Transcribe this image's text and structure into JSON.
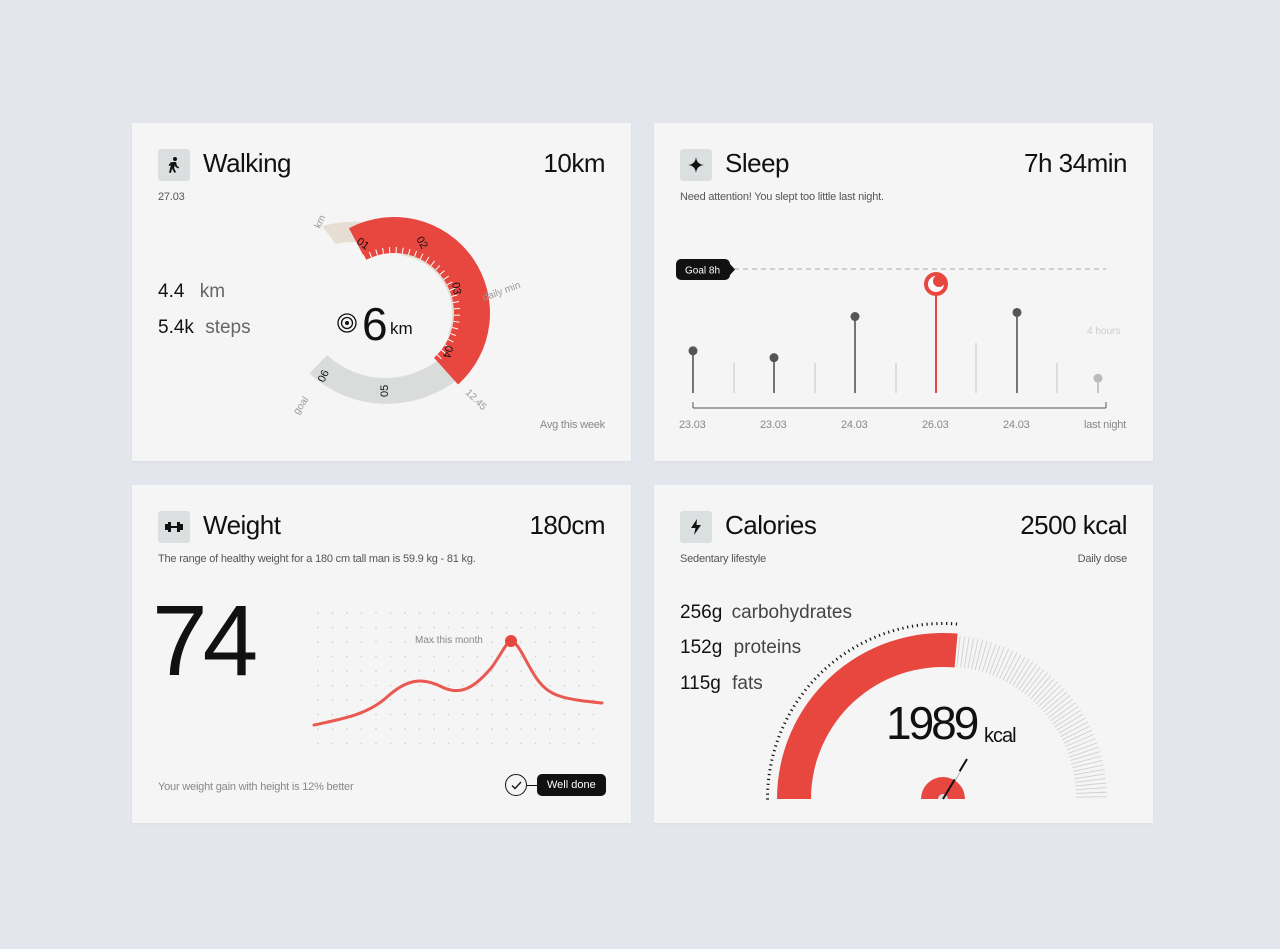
{
  "walking": {
    "title": "Walking",
    "value": "10km",
    "date": "27.03",
    "stats": [
      {
        "value": "4.4",
        "unit": "km"
      },
      {
        "value": "5.4k",
        "unit": "steps"
      }
    ],
    "center_value": "6",
    "center_unit": "km",
    "ticks": [
      "01",
      "02",
      "03",
      "04",
      "05",
      "06"
    ],
    "label_km": "km",
    "label_daily_min": "daily min",
    "label_goal": "goal",
    "label_time": "12.45",
    "footer": "Avg this week",
    "progress_fraction": 0.62
  },
  "sleep": {
    "title": "Sleep",
    "value": "7h 34min",
    "subtitle": "Need attention! You slept too little last night.",
    "goal_label": "Goal 8h",
    "hint": "4 hours",
    "dates": [
      "23.03",
      "23.03",
      "24.03",
      "26.03",
      "24.03",
      "last night"
    ],
    "chart_data": {
      "type": "line",
      "x": [
        "23.03",
        "23.03",
        "24.03",
        "26.03",
        "24.03",
        "last night"
      ],
      "values": [
        6.0,
        5.5,
        8.5,
        10.0,
        8.8,
        4.0
      ],
      "goal": 8
    },
    "highlight_color": "#e8473f"
  },
  "weight": {
    "title": "Weight",
    "value": "180cm",
    "subtitle": "The range of healthy weight for a 180 cm tall man is 59.9 kg - 81 kg.",
    "big_value": "74",
    "chart_label": "Max this month",
    "footer": "Your weight gain with height is 12% better",
    "badge": "Well done"
  },
  "calories": {
    "title": "Calories",
    "value": "2500 kcal",
    "subtitle": "Sedentary lifestyle",
    "right_label": "Daily dose",
    "macros": [
      {
        "value": "256g",
        "label": "carbohydrates"
      },
      {
        "value": "152g",
        "label": "proteins"
      },
      {
        "value": "115g",
        "label": "fats"
      }
    ],
    "gauge_value": "1989",
    "gauge_unit": "kcal",
    "gauge_fraction": 0.8
  },
  "colors": {
    "accent": "#e8473f",
    "beige": "#e6ded2",
    "gray": "#dadcdb"
  }
}
